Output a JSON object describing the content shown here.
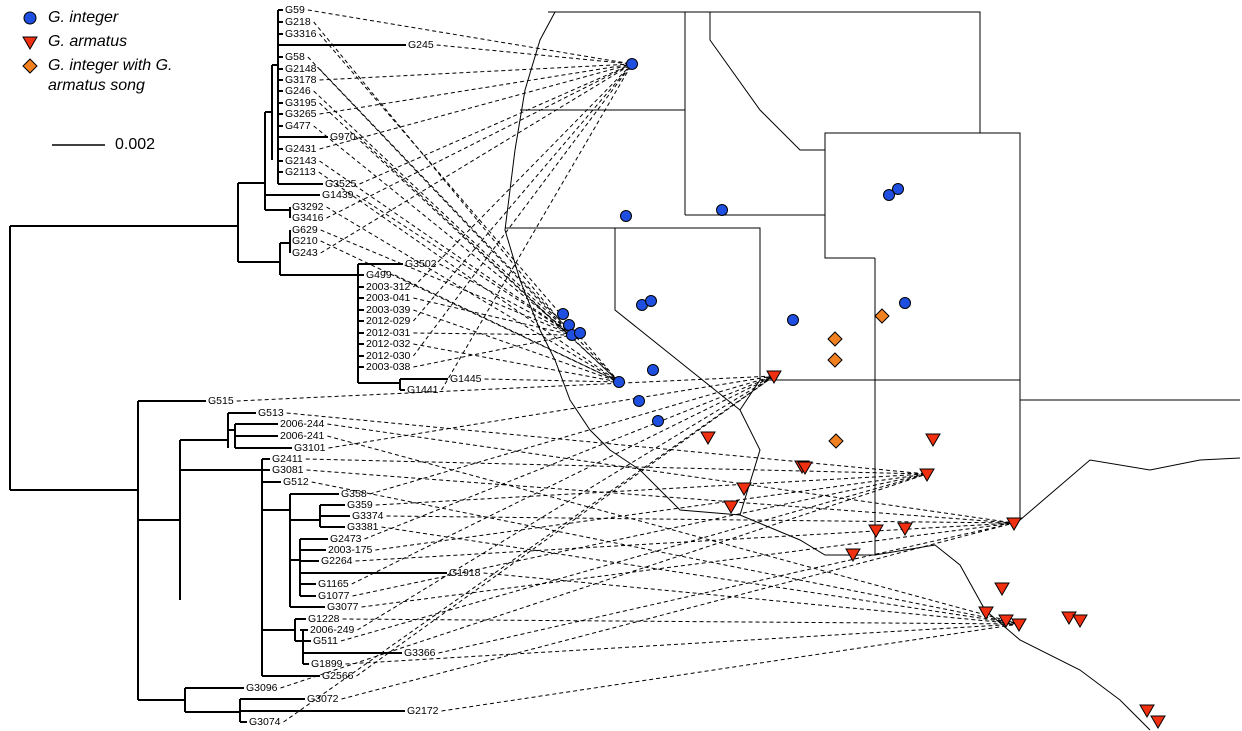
{
  "legend": {
    "items": [
      {
        "label": "G. integer"
      },
      {
        "label": "G. armatus"
      },
      {
        "label": "G. integer with G. armatus song"
      }
    ]
  },
  "scale_bar": {
    "label": "0.002"
  },
  "tree": {
    "tips": [
      "G59",
      "G218",
      "G3316",
      "G245",
      "G58",
      "G2148",
      "G3178",
      "G246",
      "G3195",
      "G3265",
      "G477",
      "G970",
      "G2431",
      "G2143",
      "G2113",
      "G3525",
      "G1439",
      "G3292",
      "G3416",
      "G629",
      "G210",
      "G243",
      "G3502",
      "G499",
      "2003-312",
      "2003-041",
      "2003-039",
      "2012-029",
      "2012-031",
      "2012-032",
      "2012-030",
      "2003-038",
      "G1445",
      "G1441",
      "G515",
      "G513",
      "2006-244",
      "2006-241",
      "G3101",
      "G2411",
      "G3081",
      "G512",
      "G358",
      "G359",
      "G3374",
      "G3381",
      "G2473",
      "2003-175",
      "G2264",
      "G1918",
      "G1165",
      "G1077",
      "G3077",
      "G1228",
      "2006-249",
      "G511",
      "G3366",
      "G1899",
      "G2566",
      "G3096",
      "G3072",
      "G2172",
      "G3074"
    ]
  }
}
